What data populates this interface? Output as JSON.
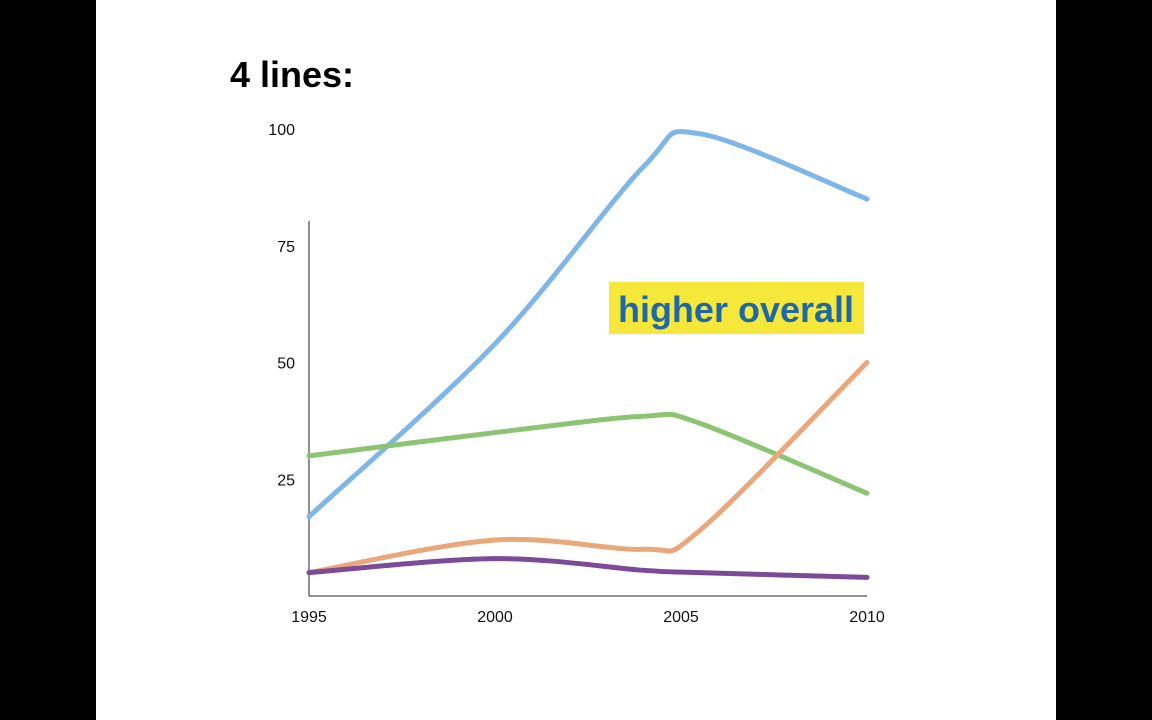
{
  "slide": {
    "title": "4 lines:"
  },
  "colors": {
    "page_background": "#000000",
    "slide_background": "#ffffff",
    "annotation_background": "#f5e83a",
    "annotation_text": "#1f68a8"
  },
  "chart_data": {
    "type": "line",
    "title": "",
    "xlabel": "",
    "ylabel": "",
    "x": [
      1995,
      2000,
      2004,
      2005.5,
      2010
    ],
    "xlim": [
      1995,
      2010
    ],
    "ylim": [
      0,
      100
    ],
    "x_ticks": [
      "1995",
      "2000",
      "2005",
      "2010"
    ],
    "y_ticks": [
      "25",
      "50",
      "75",
      "100"
    ],
    "grid": false,
    "legend": "none",
    "series": [
      {
        "color": "#7fb6e8",
        "values": [
          17,
          54,
          92,
          99,
          85
        ]
      },
      {
        "color": "#8cc474",
        "values": [
          30,
          35,
          38.5,
          37,
          22
        ]
      },
      {
        "color": "#eaa77a",
        "values": [
          5,
          12,
          10,
          14,
          50
        ]
      },
      {
        "color": "#7d4a98",
        "values": [
          5,
          8,
          5.5,
          5,
          4
        ]
      }
    ],
    "annotation": {
      "text": "higher overall",
      "near": "upper-right"
    }
  }
}
